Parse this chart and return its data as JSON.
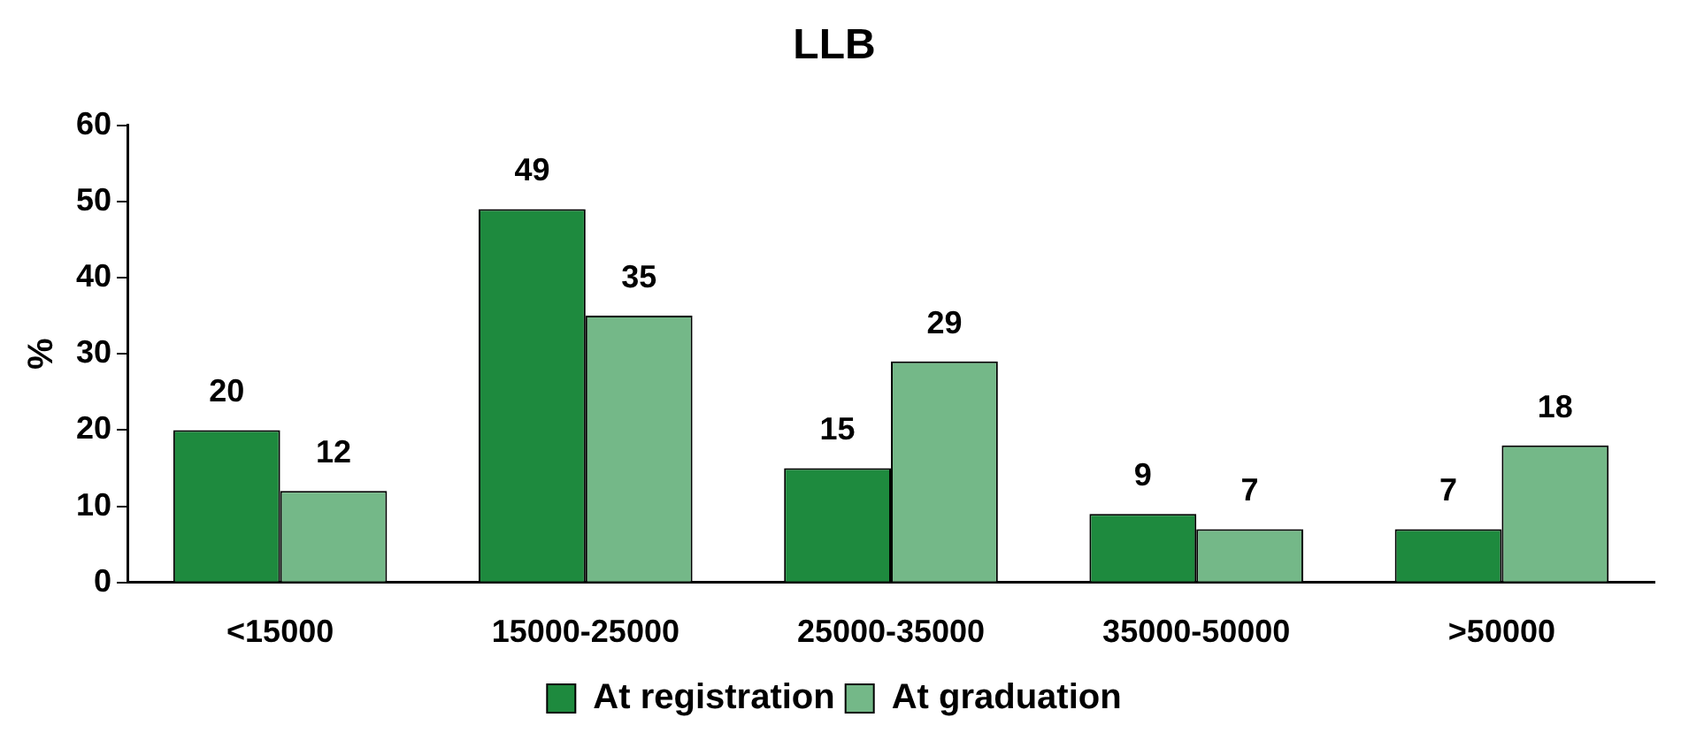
{
  "chart_data": {
    "type": "bar",
    "title": "LLB",
    "ylabel": "%",
    "categories": [
      "<15000",
      "15000-25000",
      "25000-35000",
      "35000-50000",
      ">50000"
    ],
    "series": [
      {
        "name": "At registration",
        "color": "#1e8a3e",
        "values": [
          20,
          49,
          15,
          9,
          7
        ]
      },
      {
        "name": "At graduation",
        "color": "#74b888",
        "values": [
          12,
          35,
          29,
          7,
          18
        ]
      }
    ],
    "ylim": [
      0,
      60
    ],
    "yticks": [
      0,
      10,
      20,
      30,
      40,
      50,
      60
    ],
    "grid": false,
    "legend": "bottom",
    "data_labels": true
  }
}
